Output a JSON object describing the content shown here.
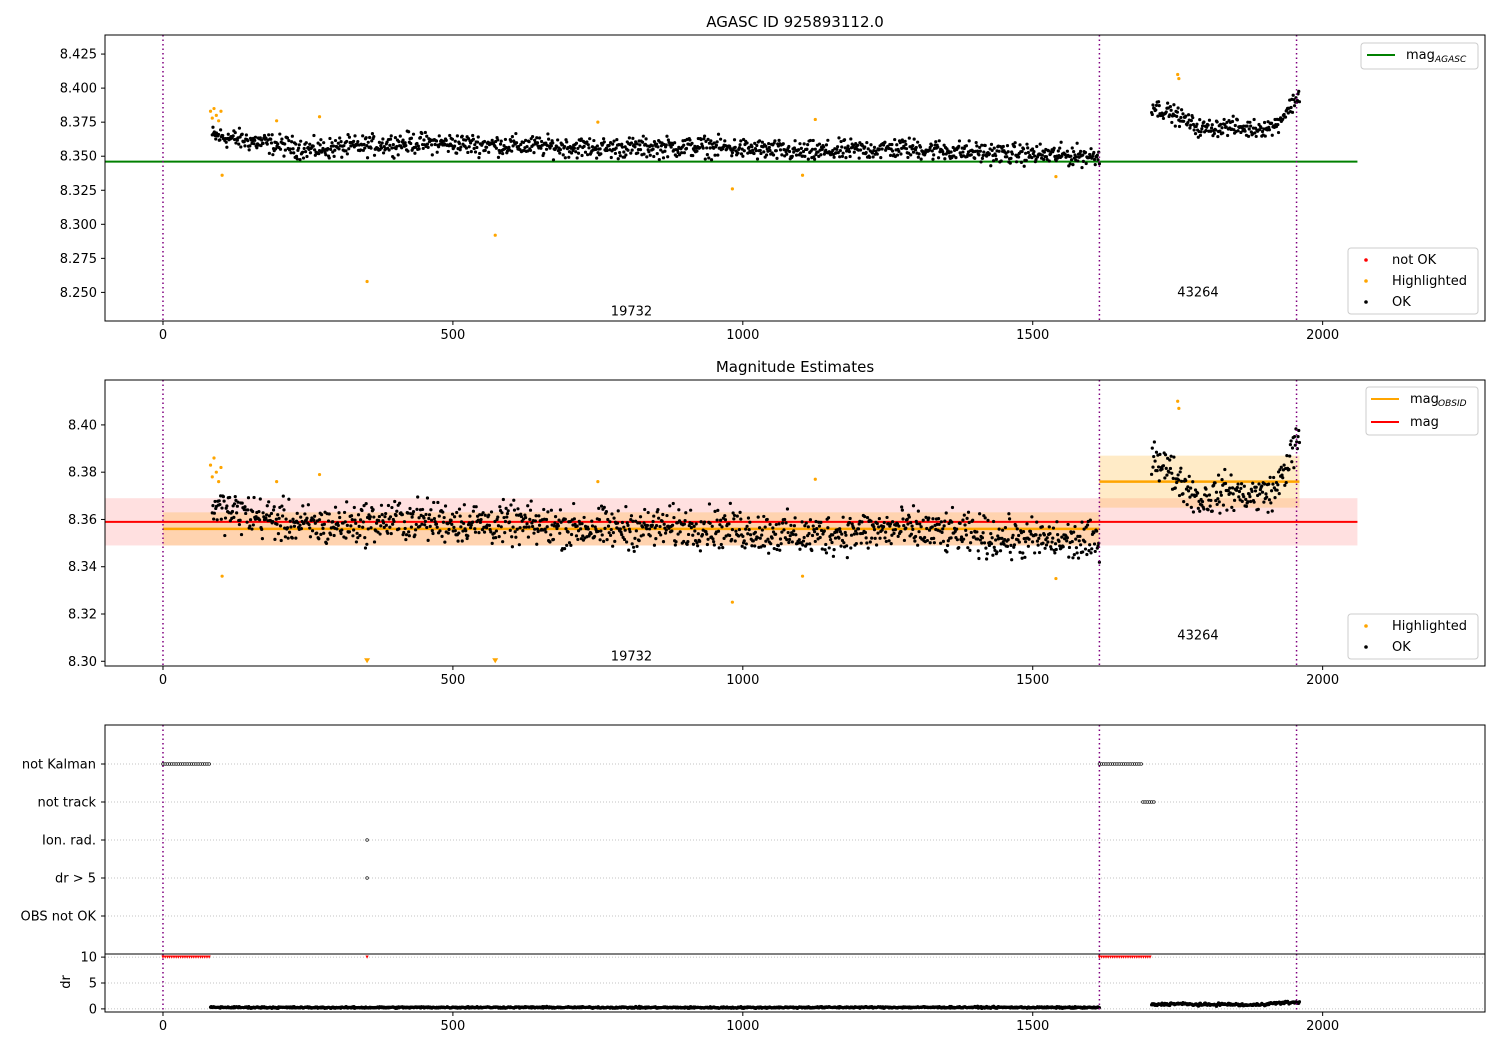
{
  "chart_data": [
    {
      "type": "scatter",
      "title": "AGASC ID 925893112.0",
      "xlim": [
        -100,
        2280
      ],
      "ylim": [
        8.229,
        8.439
      ],
      "xticks": [
        0,
        500,
        1000,
        1500,
        2000
      ],
      "yticks": [
        8.25,
        8.275,
        8.3,
        8.325,
        8.35,
        8.375,
        8.4,
        8.425
      ],
      "yticklabels": [
        "8.250",
        "8.275",
        "8.300",
        "8.325",
        "8.350",
        "8.375",
        "8.400",
        "8.425"
      ],
      "grid": false,
      "hlines": [
        {
          "name": "mag_AGASC",
          "value": 8.346,
          "x": [
            -100,
            2060
          ],
          "color": "#008000"
        }
      ],
      "vlines": [
        0,
        1615,
        1955
      ],
      "obsid_labels": [
        {
          "text": "19732",
          "x": 808,
          "y": 8.236
        },
        {
          "text": "43264",
          "x": 1785,
          "y": 8.25
        }
      ],
      "legend_top": {
        "placement": "upper right",
        "entries": [
          {
            "label": "mag",
            "sub": "AGASC",
            "color": "#008000"
          }
        ]
      },
      "legend_bottom": {
        "placement": "lower right",
        "entries": [
          {
            "label": "not OK",
            "color": "#ff0000"
          },
          {
            "label": "Highlighted",
            "color": "#ffa500"
          },
          {
            "label": "OK",
            "color": "#000000"
          }
        ]
      },
      "series": [
        {
          "name": "OK",
          "color": "#000000",
          "segments": [
            {
              "x": [
                85,
                1615
              ],
              "level": [
                8.365,
                8.355,
                8.36,
                8.358,
                8.356,
                8.357,
                8.353,
                8.356,
                8.352,
                8.35
              ],
              "spread": 0.007
            },
            {
              "x": [
                1705,
                1960
              ],
              "level": [
                8.387,
                8.38,
                8.37,
                8.372,
                8.37,
                8.372,
                8.395
              ],
              "spread": 0.006
            }
          ]
        },
        {
          "name": "Highlighted",
          "color": "#ffa500",
          "points": [
            [
              82,
              8.383
            ],
            [
              85,
              8.378
            ],
            [
              88,
              8.385
            ],
            [
              92,
              8.38
            ],
            [
              96,
              8.376
            ],
            [
              100,
              8.383
            ],
            [
              102,
              8.336
            ],
            [
              196,
              8.376
            ],
            [
              270,
              8.379
            ],
            [
              352,
              8.258
            ],
            [
              573,
              8.292
            ],
            [
              750,
              8.375
            ],
            [
              982,
              8.326
            ],
            [
              1103,
              8.336
            ],
            [
              1125,
              8.377
            ],
            [
              1540,
              8.335
            ],
            [
              1750,
              8.41
            ],
            [
              1752,
              8.407
            ]
          ]
        }
      ]
    },
    {
      "type": "scatter",
      "title": "Magnitude Estimates",
      "xlim": [
        -100,
        2280
      ],
      "ylim": [
        8.298,
        8.419
      ],
      "xticks": [
        0,
        500,
        1000,
        1500,
        2000
      ],
      "yticks": [
        8.3,
        8.32,
        8.34,
        8.36,
        8.38,
        8.4
      ],
      "yticklabels": [
        "8.30",
        "8.32",
        "8.34",
        "8.36",
        "8.38",
        "8.40"
      ],
      "grid": false,
      "mag_line": {
        "value": 8.359,
        "band": [
          8.349,
          8.369
        ],
        "x": [
          -100,
          2060
        ],
        "color": "#ff0000"
      },
      "obsid_mags": [
        {
          "x": [
            0,
            1615
          ],
          "value": 8.356,
          "band": [
            8.349,
            8.363
          ]
        },
        {
          "x": [
            1615,
            1960
          ],
          "value": 8.376,
          "band": [
            8.365,
            8.387
          ]
        }
      ],
      "vlines": [
        0,
        1615,
        1955
      ],
      "obsid_labels": [
        {
          "text": "19732",
          "x": 808,
          "y": 8.302
        },
        {
          "text": "43264",
          "x": 1785,
          "y": 8.311
        }
      ],
      "legend_top": {
        "placement": "upper right",
        "entries": [
          {
            "label": "mag",
            "sub": "OBSID",
            "color": "#ffa500"
          },
          {
            "label": "mag",
            "color": "#ff0000"
          }
        ]
      },
      "legend_bottom": {
        "placement": "lower right",
        "entries": [
          {
            "label": "Highlighted",
            "color": "#ffa500"
          },
          {
            "label": "OK",
            "color": "#000000"
          }
        ]
      },
      "series": [
        {
          "name": "OK",
          "color": "#000000",
          "segments": [
            {
              "x": [
                85,
                1615
              ],
              "level": [
                8.365,
                8.357,
                8.36,
                8.358,
                8.356,
                8.357,
                8.353,
                8.356,
                8.352,
                8.35
              ],
              "spread": 0.008
            },
            {
              "x": [
                1705,
                1960
              ],
              "level": [
                8.388,
                8.378,
                8.368,
                8.372,
                8.37,
                8.372,
                8.395
              ],
              "spread": 0.007
            }
          ]
        },
        {
          "name": "Highlighted",
          "color": "#ffa500",
          "points": [
            [
              82,
              8.383
            ],
            [
              85,
              8.378
            ],
            [
              88,
              8.386
            ],
            [
              92,
              8.38
            ],
            [
              96,
              8.376
            ],
            [
              100,
              8.382
            ],
            [
              102,
              8.336
            ],
            [
              196,
              8.376
            ],
            [
              270,
              8.379
            ],
            [
              750,
              8.376
            ],
            [
              982,
              8.325
            ],
            [
              1103,
              8.336
            ],
            [
              1125,
              8.377
            ],
            [
              1540,
              8.335
            ],
            [
              1750,
              8.41
            ],
            [
              1752,
              8.407
            ]
          ]
        },
        {
          "name": "Highlighted (off-scale)",
          "color": "#ffa500",
          "marker": "triangle-down",
          "points": [
            [
              352,
              8.3
            ],
            [
              573,
              8.3
            ]
          ]
        }
      ]
    },
    {
      "type": "scatter",
      "title": "",
      "xlim": [
        -100,
        2280
      ],
      "categories": [
        "not Kalman",
        "not track",
        "Ion. rad.",
        "dr > 5",
        "OBS not OK"
      ],
      "grid": true,
      "vlines": [
        0,
        1615,
        1955
      ],
      "flags": [
        {
          "category": "not Kalman",
          "ranges": [
            [
              0,
              82
            ],
            [
              1615,
              1690
            ]
          ]
        },
        {
          "category": "not track",
          "ranges": [
            [
              1690,
              1710
            ]
          ]
        },
        {
          "category": "Ion. rad.",
          "points": [
            352
          ]
        },
        {
          "category": "dr > 5",
          "points": [
            352
          ]
        },
        {
          "category": "OBS not OK",
          "ranges": []
        }
      ]
    },
    {
      "type": "scatter",
      "title": "",
      "ylabel": "dr",
      "xlim": [
        -100,
        2280
      ],
      "ylim": [
        -0.6,
        10.6
      ],
      "xticks": [
        0,
        500,
        1000,
        1500,
        2000
      ],
      "yticks": [
        0,
        5,
        10
      ],
      "grid": true,
      "capped": {
        "value": 10,
        "color": "#ff0000",
        "ranges": [
          [
            0,
            82
          ],
          [
            1615,
            1705
          ]
        ],
        "points": [
          352
        ]
      },
      "series": [
        {
          "name": "dr",
          "color": "#000000",
          "segments": [
            {
              "x": [
                82,
                1615
              ],
              "level": [
                0.3,
                0.25,
                0.3,
                0.28,
                0.25,
                0.3,
                0.3,
                0.25
              ],
              "spread": 0.15
            },
            {
              "x": [
                1705,
                1960
              ],
              "level": [
                0.8,
                1.0,
                0.8,
                0.9,
                0.7,
                1.1,
                1.3
              ],
              "spread": 0.25
            }
          ]
        }
      ]
    }
  ]
}
